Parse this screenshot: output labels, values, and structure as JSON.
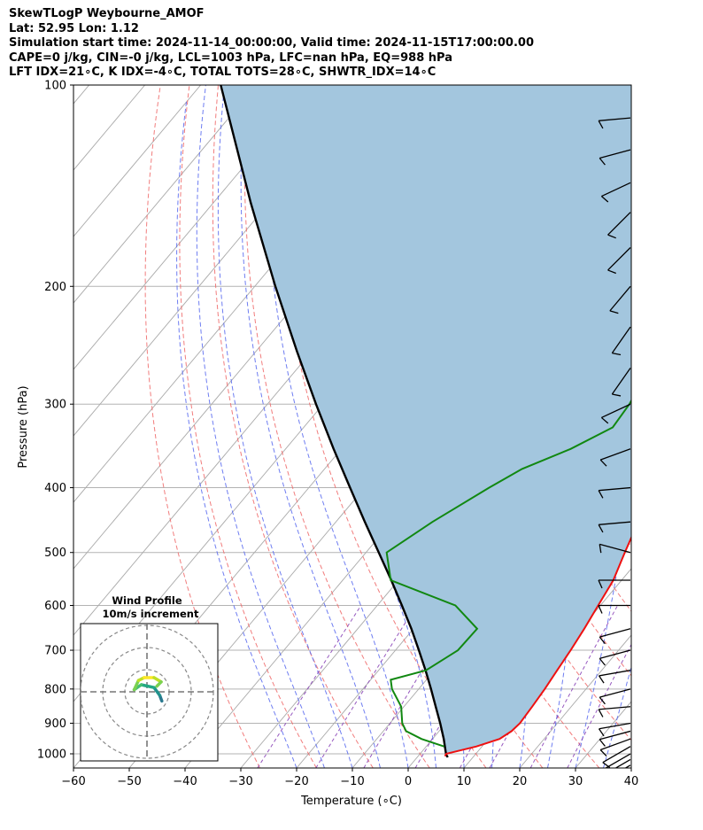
{
  "header": {
    "line1": "SkewTLogP Weybourne_AMOF",
    "line2": "Lat: 52.95   Lon: 1.12",
    "line3": "Simulation start time: 2024-11-14_00:00:00, Valid time: 2024-11-15T17:00:00.00",
    "line4": "CAPE=0 j/kg, CIN=-0 j/kg, LCL=1003 hPa, LFC=nan hPa, EQ=988 hPa",
    "line5": "LFT IDX=21∘C, K IDX=-4∘C, TOTAL TOTS=28∘C, SHWTR_IDX=14∘C"
  },
  "colors": {
    "temperature": "#ee1111",
    "dewpoint": "#118811",
    "parcel": "#000000",
    "cape_fill": "#a3c6de",
    "dry_adiabat": "#ee6666",
    "moist_adiabat": "#5566ee",
    "mixing_ratio": "#8b46b8",
    "isotherm": "#aaaaaa"
  },
  "chart_data": {
    "type": "skewt",
    "xlabel": "Temperature (∘C)",
    "ylabel": "Pressure (hPa)",
    "xlim": [
      -60,
      40
    ],
    "ylim": [
      1050,
      100
    ],
    "y_scale": "log",
    "grid": true,
    "xticks": [
      "−60",
      "−50",
      "−40",
      "−30",
      "−20",
      "−10",
      "0",
      "10",
      "20",
      "30",
      "40"
    ],
    "yticks": [
      "100",
      "200",
      "300",
      "400",
      "500",
      "600",
      "700",
      "800",
      "900",
      "1000"
    ],
    "temperature_profile": [
      {
        "p": 1008,
        "t": 4.8
      },
      {
        "p": 1000,
        "t": 4.7
      },
      {
        "p": 975,
        "t": 9.0
      },
      {
        "p": 950,
        "t": 12.0
      },
      {
        "p": 925,
        "t": 13.0
      },
      {
        "p": 900,
        "t": 13.3
      },
      {
        "p": 850,
        "t": 13.0
      },
      {
        "p": 800,
        "t": 12.6
      },
      {
        "p": 750,
        "t": 12.0
      },
      {
        "p": 700,
        "t": 11.4
      },
      {
        "p": 650,
        "t": 10.6
      },
      {
        "p": 600,
        "t": 9.6
      },
      {
        "p": 550,
        "t": 8.5
      },
      {
        "p": 500,
        "t": 6.4
      },
      {
        "p": 450,
        "t": 4.2
      },
      {
        "p": 400,
        "t": 1.9
      },
      {
        "p": 350,
        "t": -0.7
      },
      {
        "p": 300,
        "t": -1.5
      },
      {
        "p": 250,
        "t": -1.9
      },
      {
        "p": 225,
        "t": -2.9
      },
      {
        "p": 200,
        "t": -0.1
      },
      {
        "p": 175,
        "t": 4.8
      },
      {
        "p": 150,
        "t": 8.9
      },
      {
        "p": 130,
        "t": 14.0
      },
      {
        "p": 120,
        "t": 16.9
      },
      {
        "p": 110,
        "t": 20.6
      },
      {
        "p": 100,
        "t": 25.6
      }
    ],
    "dewpoint_profile": [
      {
        "p": 975,
        "t": 3.2
      },
      {
        "p": 950,
        "t": -2.0
      },
      {
        "p": 925,
        "t": -5.9
      },
      {
        "p": 900,
        "t": -7.8
      },
      {
        "p": 850,
        "t": -10.5
      },
      {
        "p": 800,
        "t": -14.8
      },
      {
        "p": 775,
        "t": -16.4
      },
      {
        "p": 750,
        "t": -11.5
      },
      {
        "p": 700,
        "t": -8.8
      },
      {
        "p": 650,
        "t": -8.6
      },
      {
        "p": 600,
        "t": -16.0
      },
      {
        "p": 550,
        "t": -31.4
      },
      {
        "p": 500,
        "t": -36.3
      },
      {
        "p": 450,
        "t": -32.7
      },
      {
        "p": 400,
        "t": -27.7
      },
      {
        "p": 375,
        "t": -24.6
      },
      {
        "p": 350,
        "t": -18.9
      },
      {
        "p": 325,
        "t": -14.6
      },
      {
        "p": 300,
        "t": -15.1
      },
      {
        "p": 275,
        "t": -16.4
      },
      {
        "p": 250,
        "t": -18.8
      },
      {
        "p": 225,
        "t": -19.4
      },
      {
        "p": 200,
        "t": -16.6
      },
      {
        "p": 175,
        "t": -11.0
      },
      {
        "p": 150,
        "t": -6.5
      },
      {
        "p": 130,
        "t": -2.0
      },
      {
        "p": 120,
        "t": 1.4
      },
      {
        "p": 110,
        "t": 5.1
      },
      {
        "p": 100,
        "t": 10.4
      }
    ],
    "parcel_profile": [
      {
        "p": 1012,
        "t": 5.5
      },
      {
        "p": 1003,
        "t": 4.8
      },
      {
        "p": 950,
        "t": 2.0
      },
      {
        "p": 900,
        "t": -1.0
      },
      {
        "p": 850,
        "t": -4.3
      },
      {
        "p": 800,
        "t": -7.8
      },
      {
        "p": 750,
        "t": -11.6
      },
      {
        "p": 700,
        "t": -15.8
      },
      {
        "p": 650,
        "t": -20.4
      },
      {
        "p": 600,
        "t": -25.6
      },
      {
        "p": 550,
        "t": -31.3
      },
      {
        "p": 500,
        "t": -37.7
      },
      {
        "p": 450,
        "t": -44.8
      },
      {
        "p": 400,
        "t": -52.6
      },
      {
        "p": 350,
        "t": -61.4
      },
      {
        "p": 300,
        "t": -71.3
      },
      {
        "p": 250,
        "t": -82.7
      },
      {
        "p": 200,
        "t": -96.3
      },
      {
        "p": 150,
        "t": -113.3
      },
      {
        "p": 100,
        "t": -136.4
      }
    ],
    "wind_barbs": [
      {
        "p": 1040,
        "speed_kt": 10,
        "dir_deg": 240
      },
      {
        "p": 1020,
        "speed_kt": 10,
        "dir_deg": 240
      },
      {
        "p": 1000,
        "speed_kt": 10,
        "dir_deg": 240
      },
      {
        "p": 975,
        "speed_kt": 10,
        "dir_deg": 240
      },
      {
        "p": 950,
        "speed_kt": 10,
        "dir_deg": 250
      },
      {
        "p": 925,
        "speed_kt": 10,
        "dir_deg": 255
      },
      {
        "p": 900,
        "speed_kt": 10,
        "dir_deg": 260
      },
      {
        "p": 850,
        "speed_kt": 10,
        "dir_deg": 265
      },
      {
        "p": 800,
        "speed_kt": 10,
        "dir_deg": 255
      },
      {
        "p": 750,
        "speed_kt": 10,
        "dir_deg": 260
      },
      {
        "p": 700,
        "speed_kt": 10,
        "dir_deg": 255
      },
      {
        "p": 650,
        "speed_kt": 10,
        "dir_deg": 255
      },
      {
        "p": 600,
        "speed_kt": 10,
        "dir_deg": 270
      },
      {
        "p": 550,
        "speed_kt": 10,
        "dir_deg": 270
      },
      {
        "p": 500,
        "speed_kt": 10,
        "dir_deg": 285
      },
      {
        "p": 450,
        "speed_kt": 10,
        "dir_deg": 265
      },
      {
        "p": 400,
        "speed_kt": 10,
        "dir_deg": 265
      },
      {
        "p": 350,
        "speed_kt": 10,
        "dir_deg": 250
      },
      {
        "p": 300,
        "speed_kt": 10,
        "dir_deg": 245
      },
      {
        "p": 265,
        "speed_kt": 10,
        "dir_deg": 215
      },
      {
        "p": 230,
        "speed_kt": 10,
        "dir_deg": 215
      },
      {
        "p": 200,
        "speed_kt": 10,
        "dir_deg": 220
      },
      {
        "p": 175,
        "speed_kt": 10,
        "dir_deg": 225
      },
      {
        "p": 155,
        "speed_kt": 10,
        "dir_deg": 225
      },
      {
        "p": 140,
        "speed_kt": 10,
        "dir_deg": 245
      },
      {
        "p": 125,
        "speed_kt": 10,
        "dir_deg": 255
      },
      {
        "p": 112,
        "speed_kt": 10,
        "dir_deg": 265
      }
    ],
    "inset": {
      "title": "Wind Profile",
      "subtitle": "10m/s increment",
      "rings": 3,
      "hodograph": [
        {
          "u": 2.1,
          "v": -1.3
        },
        {
          "u": 1.8,
          "v": -0.5
        },
        {
          "u": 1.0,
          "v": 0.6
        },
        {
          "u": -0.8,
          "v": 1.0
        },
        {
          "u": -1.8,
          "v": 0.3
        },
        {
          "u": -1.2,
          "v": 1.6
        },
        {
          "u": -0.4,
          "v": 2.0
        },
        {
          "u": 1.0,
          "v": 2.0
        },
        {
          "u": 2.0,
          "v": 1.4
        },
        {
          "u": 1.4,
          "v": 0.8
        }
      ]
    }
  }
}
